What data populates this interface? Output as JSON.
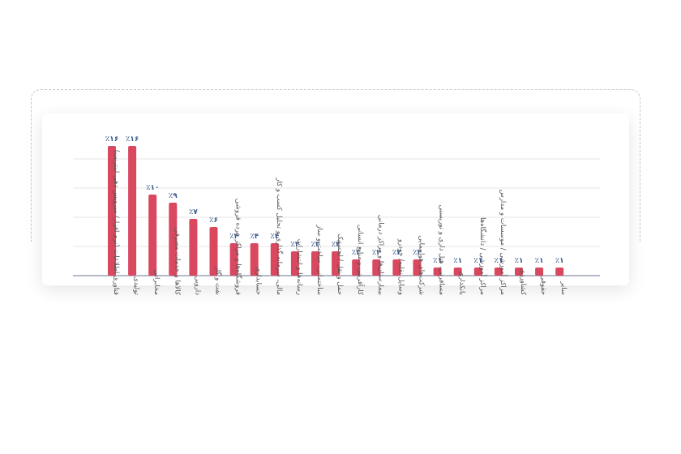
{
  "chart_data": {
    "type": "bar",
    "title": "",
    "xlabel": "",
    "ylabel": "",
    "ylim": [
      0,
      18
    ],
    "grid": true,
    "bar_color": "#d9485f",
    "label_color": "#3a5a8c",
    "categories": [
      "فناوری اطلاعات (نرم افزار/ سرویس دهی اینترنت)",
      "تولیدی",
      "مخابراتی",
      "کالاها و خدمات مصرفی",
      "دارویی",
      "نفت و گاز",
      "فروشگاه‌ها و مراکز خرده فروشی",
      "حسابداری",
      "مالی، سرمایه گذاری و تحلیل کسب و کار",
      "رسانه‌ها و انتشارات",
      "ساختمانی، ساخت و ساز",
      "حمل و نقل / لجستیک",
      "کارآفرینی و منابع انسانی",
      "بیمارستان‌ها و مراکز درمانی",
      "وسایل نقلیه/ خودرو",
      "شرکت‌های هواپیمایی",
      "مسافرتی، هتل داری و توریستی",
      "بانکداری",
      "مراکز آموزشی / دانشگاه‌ها",
      "مراکز آموزشی / موسسات و مدارس",
      "کشاورزی",
      "حقوقی",
      "سایر"
    ],
    "values": [
      16,
      16,
      10,
      9,
      7,
      6,
      4,
      4,
      4,
      3,
      3,
      3,
      2,
      2,
      2,
      2,
      1,
      1,
      1,
      1,
      1,
      1,
      1
    ],
    "value_labels": [
      "٪۱۶",
      "٪۱۶",
      "٪۱۰",
      "٪۹",
      "٪۷",
      "٪۶",
      "٪۴",
      "٪۴",
      "٪۴",
      "٪۳",
      "٪۳",
      "٪۳",
      "٪۲",
      "٪۲",
      "٪۲",
      "٪۲",
      "٪۱",
      "٪۱",
      "٪۱",
      "٪۱",
      "٪۱",
      "٪۱",
      "٪۱"
    ]
  }
}
